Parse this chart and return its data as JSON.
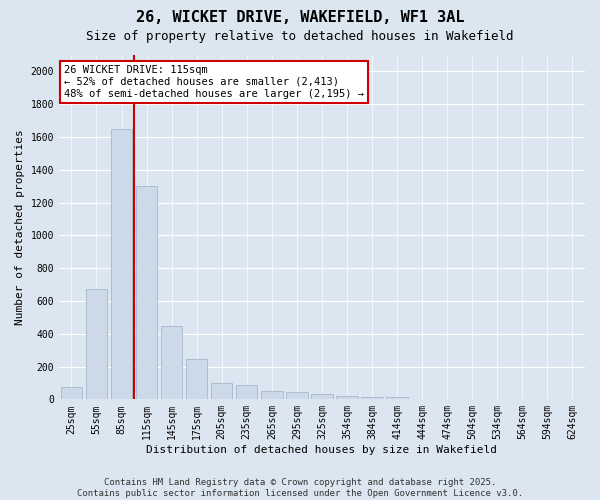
{
  "title": "26, WICKET DRIVE, WAKEFIELD, WF1 3AL",
  "subtitle": "Size of property relative to detached houses in Wakefield",
  "xlabel": "Distribution of detached houses by size in Wakefield",
  "ylabel": "Number of detached properties",
  "categories": [
    "25sqm",
    "55sqm",
    "85sqm",
    "115sqm",
    "145sqm",
    "175sqm",
    "205sqm",
    "235sqm",
    "265sqm",
    "295sqm",
    "325sqm",
    "354sqm",
    "384sqm",
    "414sqm",
    "444sqm",
    "474sqm",
    "504sqm",
    "534sqm",
    "564sqm",
    "594sqm",
    "624sqm"
  ],
  "values": [
    75,
    675,
    1650,
    1300,
    450,
    245,
    100,
    90,
    50,
    45,
    30,
    20,
    15,
    12,
    5,
    3,
    1,
    1,
    0,
    0,
    5
  ],
  "bar_color": "#ccd9e8",
  "bar_edge_color": "#9ab0c8",
  "vline_color": "#cc0000",
  "annotation_text": "26 WICKET DRIVE: 115sqm\n← 52% of detached houses are smaller (2,413)\n48% of semi-detached houses are larger (2,195) →",
  "annotation_box_facecolor": "#ffffff",
  "annotation_box_edgecolor": "#cc0000",
  "ylim": [
    0,
    2100
  ],
  "yticks": [
    0,
    200,
    400,
    600,
    800,
    1000,
    1200,
    1400,
    1600,
    1800,
    2000
  ],
  "plot_bg": "#dce6f0",
  "fig_bg": "#dce6f0",
  "footer": "Contains HM Land Registry data © Crown copyright and database right 2025.\nContains public sector information licensed under the Open Government Licence v3.0.",
  "title_fontsize": 11,
  "subtitle_fontsize": 9,
  "axis_fontsize": 8,
  "tick_fontsize": 7,
  "footer_fontsize": 6.5,
  "annotation_fontsize": 7.5
}
